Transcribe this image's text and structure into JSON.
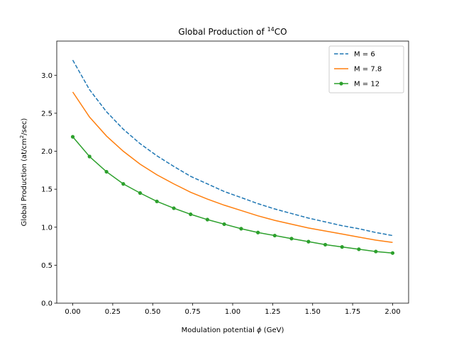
{
  "chart_data": {
    "type": "line",
    "title": "Global Production of",
    "title_sup": "14",
    "title_suffix": "CO",
    "xlabel": "Modulation potential",
    "xlabel_symbol": "ϕ",
    "xlabel_unit": "(GeV)",
    "ylabel": "Global Production (at/cm",
    "ylabel_sup": "2",
    "ylabel_suffix": "/sec)",
    "xlim": [
      -0.1,
      2.1
    ],
    "ylim": [
      0.0,
      3.45
    ],
    "xticks": [
      0.0,
      0.25,
      0.5,
      0.75,
      1.0,
      1.25,
      1.5,
      1.75,
      2.0
    ],
    "xtick_labels": [
      "0.00",
      "0.25",
      "0.50",
      "0.75",
      "1.00",
      "1.25",
      "1.50",
      "1.75",
      "2.00"
    ],
    "yticks": [
      0.0,
      0.5,
      1.0,
      1.5,
      2.0,
      2.5,
      3.0
    ],
    "ytick_labels": [
      "0.0",
      "0.5",
      "1.0",
      "1.5",
      "2.0",
      "2.5",
      "3.0"
    ],
    "grid": false,
    "legend_position": "top-right",
    "x": [
      0.0,
      0.105,
      0.211,
      0.316,
      0.421,
      0.526,
      0.632,
      0.737,
      0.842,
      0.947,
      1.053,
      1.158,
      1.263,
      1.368,
      1.474,
      1.579,
      1.684,
      1.789,
      1.895,
      2.0
    ],
    "series": [
      {
        "name": "M = 6",
        "color": "#1f77b4",
        "style": "dashed",
        "values": [
          3.2,
          2.81,
          2.52,
          2.29,
          2.1,
          1.94,
          1.8,
          1.67,
          1.57,
          1.47,
          1.39,
          1.31,
          1.24,
          1.18,
          1.12,
          1.07,
          1.02,
          0.98,
          0.93,
          0.89
        ]
      },
      {
        "name": "M = 7.8",
        "color": "#ff7f0e",
        "style": "solid",
        "values": [
          2.78,
          2.45,
          2.2,
          2.0,
          1.83,
          1.69,
          1.57,
          1.46,
          1.37,
          1.29,
          1.22,
          1.15,
          1.09,
          1.04,
          0.99,
          0.95,
          0.91,
          0.87,
          0.83,
          0.8
        ]
      },
      {
        "name": "M = 12",
        "color": "#2ca02c",
        "style": "solid-markers",
        "values": [
          2.19,
          1.93,
          1.73,
          1.57,
          1.45,
          1.34,
          1.25,
          1.17,
          1.1,
          1.04,
          0.98,
          0.93,
          0.89,
          0.85,
          0.81,
          0.77,
          0.74,
          0.71,
          0.68,
          0.66
        ]
      }
    ]
  }
}
